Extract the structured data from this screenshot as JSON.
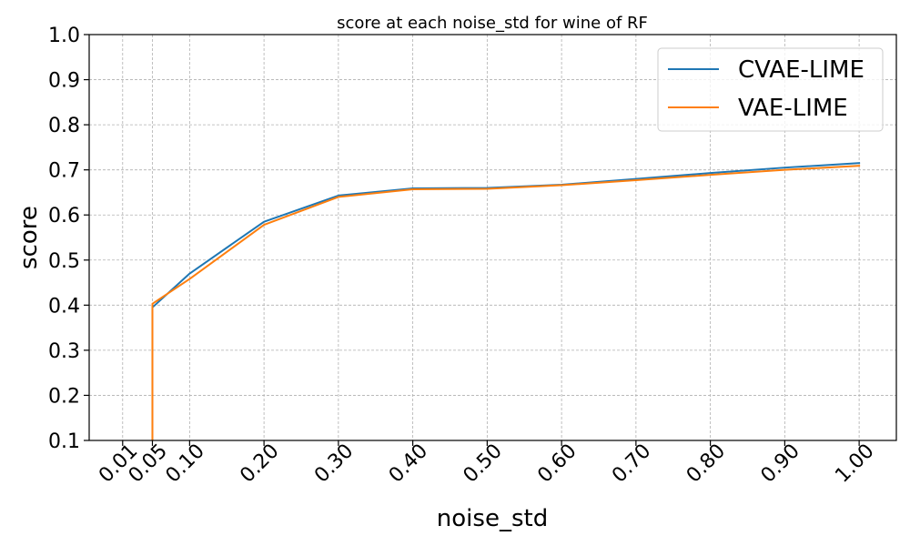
{
  "chart_data": {
    "type": "line",
    "title": "score at each noise_std for wine of RF",
    "xlabel": "noise_std",
    "ylabel": "score",
    "xlim": [
      -0.035,
      1.05
    ],
    "ylim": [
      0.1,
      1.0
    ],
    "grid": true,
    "legend_position": "top-right",
    "xticks": [
      0.01,
      0.05,
      0.1,
      0.2,
      0.3,
      0.4,
      0.5,
      0.6,
      0.7,
      0.8,
      0.9,
      1.0
    ],
    "xtick_labels": [
      "0.01",
      "0.05",
      "0.10",
      "0.20",
      "0.30",
      "0.40",
      "0.50",
      "0.60",
      "0.70",
      "0.80",
      "0.90",
      "1.00"
    ],
    "yticks": [
      0.1,
      0.2,
      0.3,
      0.4,
      0.5,
      0.6,
      0.7,
      0.8,
      0.9,
      1.0
    ],
    "ytick_labels": [
      "0.1",
      "0.2",
      "0.3",
      "0.4",
      "0.5",
      "0.6",
      "0.7",
      "0.8",
      "0.9",
      "1.0"
    ],
    "series": [
      {
        "name": "CVAE-LIME",
        "color": "#1f77b4",
        "x": [
          0.05,
          0.05,
          0.1,
          0.2,
          0.3,
          0.4,
          0.5,
          0.6,
          0.7,
          0.8,
          0.9,
          1.0
        ],
        "y": [
          0.0,
          0.395,
          0.47,
          0.585,
          0.643,
          0.659,
          0.66,
          0.667,
          0.68,
          0.693,
          0.705,
          0.715
        ]
      },
      {
        "name": "VAE-LIME",
        "color": "#ff7f0e",
        "x": [
          0.05,
          0.05,
          0.1,
          0.2,
          0.3,
          0.4,
          0.5,
          0.6,
          0.7,
          0.8,
          0.9,
          1.0
        ],
        "y": [
          0.0,
          0.403,
          0.458,
          0.578,
          0.64,
          0.657,
          0.658,
          0.666,
          0.677,
          0.689,
          0.7,
          0.709
        ]
      }
    ]
  }
}
